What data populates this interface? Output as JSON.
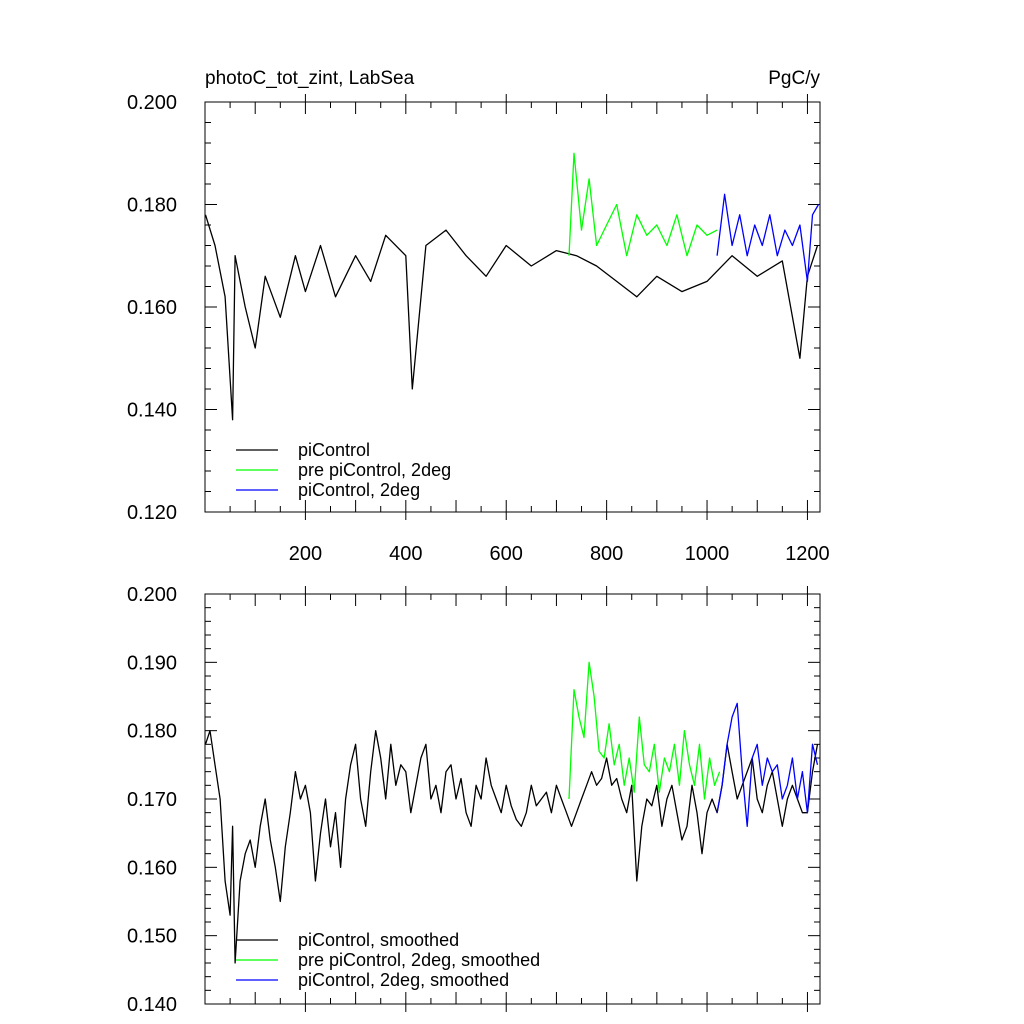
{
  "chart_data": [
    {
      "type": "line",
      "title": "photoC_tot_zint, LabSea",
      "units": "PgC/y",
      "xlabel": "",
      "ylabel": "",
      "xlim": [
        0,
        1225
      ],
      "ylim": [
        0.12,
        0.2
      ],
      "xticks": [
        200,
        400,
        600,
        800,
        1000,
        1200
      ],
      "xtick_labels": [
        "200",
        "400",
        "600",
        "800",
        "1000",
        "1200"
      ],
      "yticks": [
        0.12,
        0.14,
        0.16,
        0.18,
        0.2
      ],
      "ytick_labels": [
        "0.120",
        "0.140",
        "0.160",
        "0.180",
        "0.200"
      ],
      "legend_position": "bottom-left",
      "series": [
        {
          "name": "piControl",
          "color": "#000000",
          "x": [
            1,
            20,
            40,
            55,
            60,
            80,
            100,
            120,
            150,
            180,
            200,
            230,
            260,
            300,
            330,
            360,
            400,
            413,
            440,
            480,
            520,
            560,
            600,
            650,
            700,
            740,
            780,
            820,
            860,
            900,
            950,
            1000,
            1050,
            1100,
            1150,
            1185,
            1200,
            1220
          ],
          "y": [
            0.178,
            0.172,
            0.162,
            0.138,
            0.17,
            0.16,
            0.152,
            0.166,
            0.158,
            0.17,
            0.163,
            0.172,
            0.162,
            0.17,
            0.165,
            0.174,
            0.17,
            0.144,
            0.172,
            0.175,
            0.17,
            0.166,
            0.172,
            0.168,
            0.171,
            0.17,
            0.168,
            0.165,
            0.162,
            0.166,
            0.163,
            0.165,
            0.17,
            0.166,
            0.169,
            0.15,
            0.166,
            0.172
          ]
        },
        {
          "name": "pre piControl, 2deg",
          "color": "#00ff00",
          "x": [
            725,
            735,
            750,
            765,
            780,
            800,
            820,
            840,
            860,
            880,
            900,
            920,
            940,
            960,
            980,
            1000,
            1020
          ],
          "y": [
            0.17,
            0.19,
            0.175,
            0.185,
            0.172,
            0.176,
            0.18,
            0.17,
            0.178,
            0.174,
            0.176,
            0.172,
            0.178,
            0.17,
            0.176,
            0.174,
            0.175
          ]
        },
        {
          "name": "piControl, 2deg",
          "color": "#0000ff",
          "x": [
            1020,
            1035,
            1050,
            1065,
            1080,
            1095,
            1110,
            1125,
            1140,
            1155,
            1170,
            1185,
            1200,
            1210,
            1222
          ],
          "y": [
            0.17,
            0.182,
            0.172,
            0.178,
            0.17,
            0.176,
            0.172,
            0.178,
            0.17,
            0.175,
            0.172,
            0.176,
            0.165,
            0.178,
            0.18
          ]
        }
      ]
    },
    {
      "type": "line",
      "title": "",
      "xlabel": "",
      "ylabel": "",
      "xlim": [
        0,
        1225
      ],
      "ylim": [
        0.14,
        0.2
      ],
      "xticks": [
        200,
        400,
        600,
        800,
        1000,
        1200
      ],
      "yticks": [
        0.14,
        0.15,
        0.16,
        0.17,
        0.18,
        0.19,
        0.2
      ],
      "ytick_labels": [
        "0.140",
        "0.150",
        "0.160",
        "0.170",
        "0.180",
        "0.190",
        "0.200"
      ],
      "legend_position": "bottom-left",
      "series": [
        {
          "name": "piControl, smoothed",
          "color": "#000000",
          "x": [
            1,
            10,
            20,
            30,
            40,
            50,
            55,
            60,
            70,
            80,
            90,
            100,
            110,
            120,
            130,
            140,
            150,
            160,
            170,
            180,
            190,
            200,
            210,
            220,
            230,
            240,
            250,
            260,
            270,
            280,
            290,
            300,
            310,
            320,
            330,
            340,
            350,
            360,
            370,
            380,
            390,
            400,
            410,
            420,
            430,
            440,
            450,
            460,
            470,
            480,
            490,
            500,
            510,
            520,
            530,
            540,
            550,
            560,
            570,
            580,
            590,
            600,
            610,
            620,
            630,
            640,
            650,
            660,
            670,
            680,
            690,
            700,
            710,
            720,
            730,
            740,
            750,
            760,
            770,
            780,
            790,
            800,
            810,
            820,
            830,
            840,
            850,
            860,
            870,
            880,
            890,
            900,
            910,
            920,
            930,
            940,
            950,
            960,
            970,
            980,
            990,
            1000,
            1010,
            1020,
            1030,
            1040,
            1050,
            1060,
            1070,
            1080,
            1090,
            1100,
            1110,
            1120,
            1130,
            1140,
            1150,
            1160,
            1170,
            1180,
            1190,
            1200,
            1210,
            1220
          ],
          "y": [
            0.178,
            0.18,
            0.175,
            0.17,
            0.158,
            0.153,
            0.166,
            0.146,
            0.158,
            0.162,
            0.164,
            0.16,
            0.166,
            0.17,
            0.164,
            0.16,
            0.155,
            0.163,
            0.168,
            0.174,
            0.17,
            0.172,
            0.168,
            0.158,
            0.165,
            0.17,
            0.163,
            0.168,
            0.16,
            0.17,
            0.175,
            0.178,
            0.17,
            0.166,
            0.174,
            0.18,
            0.176,
            0.17,
            0.178,
            0.172,
            0.175,
            0.174,
            0.168,
            0.172,
            0.176,
            0.178,
            0.17,
            0.172,
            0.168,
            0.174,
            0.175,
            0.17,
            0.173,
            0.168,
            0.166,
            0.172,
            0.17,
            0.176,
            0.172,
            0.17,
            0.168,
            0.172,
            0.169,
            0.167,
            0.166,
            0.168,
            0.172,
            0.169,
            0.17,
            0.171,
            0.168,
            0.172,
            0.17,
            0.168,
            0.166,
            0.168,
            0.17,
            0.172,
            0.174,
            0.172,
            0.173,
            0.176,
            0.172,
            0.173,
            0.17,
            0.168,
            0.172,
            0.158,
            0.166,
            0.17,
            0.169,
            0.172,
            0.166,
            0.17,
            0.172,
            0.168,
            0.164,
            0.166,
            0.172,
            0.168,
            0.162,
            0.168,
            0.17,
            0.168,
            0.172,
            0.178,
            0.174,
            0.17,
            0.172,
            0.174,
            0.176,
            0.17,
            0.168,
            0.172,
            0.174,
            0.17,
            0.166,
            0.17,
            0.172,
            0.17,
            0.168,
            0.168,
            0.174,
            0.178
          ]
        },
        {
          "name": "pre piControl, 2deg, smoothed",
          "color": "#00ff00",
          "x": [
            725,
            735,
            745,
            755,
            765,
            775,
            785,
            795,
            805,
            815,
            825,
            835,
            845,
            855,
            865,
            875,
            885,
            895,
            905,
            915,
            925,
            935,
            945,
            955,
            965,
            975,
            985,
            995,
            1005,
            1015,
            1025
          ],
          "y": [
            0.17,
            0.186,
            0.182,
            0.179,
            0.19,
            0.185,
            0.177,
            0.176,
            0.181,
            0.175,
            0.178,
            0.172,
            0.176,
            0.171,
            0.182,
            0.175,
            0.174,
            0.178,
            0.171,
            0.176,
            0.174,
            0.178,
            0.172,
            0.18,
            0.175,
            0.172,
            0.178,
            0.17,
            0.176,
            0.172,
            0.174
          ]
        },
        {
          "name": "piControl, 2deg, smoothed",
          "color": "#0000ff",
          "x": [
            1020,
            1030,
            1040,
            1050,
            1060,
            1070,
            1080,
            1090,
            1100,
            1110,
            1120,
            1130,
            1140,
            1150,
            1160,
            1170,
            1180,
            1190,
            1200,
            1210,
            1220
          ],
          "y": [
            0.168,
            0.172,
            0.178,
            0.182,
            0.184,
            0.174,
            0.166,
            0.176,
            0.178,
            0.172,
            0.176,
            0.174,
            0.175,
            0.17,
            0.172,
            0.176,
            0.17,
            0.174,
            0.168,
            0.178,
            0.175
          ]
        }
      ]
    }
  ]
}
